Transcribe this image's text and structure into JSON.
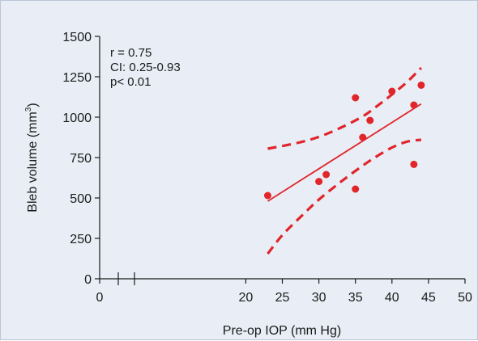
{
  "colors": {
    "background": "#e9eef6",
    "data": "#e0262b",
    "axis": "#1a1a1a"
  },
  "chart_data": {
    "type": "scatter",
    "xlabel": "Pre-op IOP (mm Hg)",
    "ylabel_main": "Bleb volume (mm",
    "ylabel_sup": "3",
    "ylabel_tail": ")",
    "xlim": [
      0,
      50
    ],
    "ylim": [
      0,
      1500
    ],
    "x_ticks": [
      0,
      20,
      25,
      30,
      35,
      40,
      45,
      50
    ],
    "y_ticks": [
      0,
      250,
      500,
      750,
      1000,
      1250,
      1500
    ],
    "axis_break": "x",
    "grid": false,
    "annotations": [
      "r = 0.75",
      "CI: 0.25-0.93",
      "p< 0.01"
    ],
    "points": [
      {
        "x": 23,
        "y": 515
      },
      {
        "x": 30,
        "y": 602
      },
      {
        "x": 31,
        "y": 645
      },
      {
        "x": 35,
        "y": 1120
      },
      {
        "x": 35,
        "y": 555
      },
      {
        "x": 36,
        "y": 875
      },
      {
        "x": 37,
        "y": 980
      },
      {
        "x": 40,
        "y": 1160
      },
      {
        "x": 43,
        "y": 1075
      },
      {
        "x": 43,
        "y": 708
      },
      {
        "x": 44,
        "y": 1198
      }
    ],
    "fit_line": [
      {
        "x": 23,
        "y": 480
      },
      {
        "x": 44,
        "y": 1082
      }
    ],
    "ci_upper": [
      {
        "x": 23,
        "y": 805
      },
      {
        "x": 27,
        "y": 840
      },
      {
        "x": 30,
        "y": 878
      },
      {
        "x": 33,
        "y": 935
      },
      {
        "x": 36,
        "y": 1005
      },
      {
        "x": 38,
        "y": 1070
      },
      {
        "x": 40,
        "y": 1140
      },
      {
        "x": 42,
        "y": 1215
      },
      {
        "x": 44,
        "y": 1305
      }
    ],
    "ci_lower": [
      {
        "x": 23,
        "y": 155
      },
      {
        "x": 25,
        "y": 270
      },
      {
        "x": 28,
        "y": 405
      },
      {
        "x": 30,
        "y": 490
      },
      {
        "x": 33,
        "y": 600
      },
      {
        "x": 36,
        "y": 700
      },
      {
        "x": 38,
        "y": 760
      },
      {
        "x": 40,
        "y": 812
      },
      {
        "x": 42,
        "y": 848
      },
      {
        "x": 44,
        "y": 860
      }
    ]
  }
}
